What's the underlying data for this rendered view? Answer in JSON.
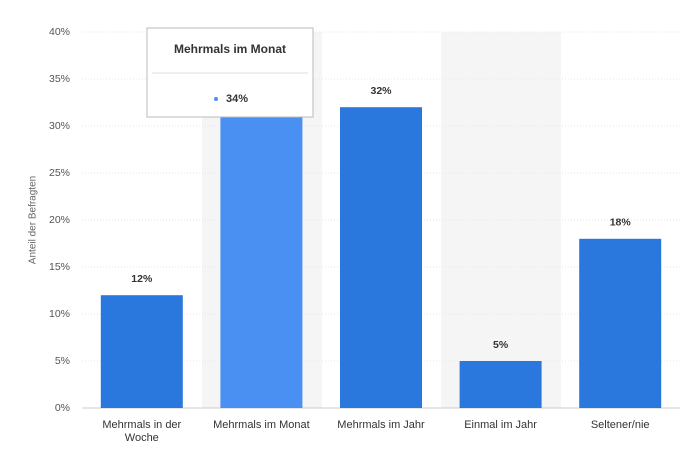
{
  "chart_data": {
    "type": "bar",
    "y_axis_label": "Anteil der Befragten",
    "categories": [
      "Mehrmals in der Woche",
      "Mehrmals im Monat",
      "Mehrmals im Jahr",
      "Einmal im Jahr",
      "Seltener/nie"
    ],
    "values": [
      12,
      34,
      32,
      5,
      18
    ],
    "value_labels": [
      "12%",
      "34%",
      "32%",
      "5%",
      "18%"
    ],
    "colors": [
      "#2a78de",
      "#4a90f2",
      "#2a78de",
      "#2a78de",
      "#2a78de"
    ],
    "ylim": [
      0,
      40
    ],
    "yticks": [
      {
        "value": 0,
        "label": "0%"
      },
      {
        "value": 5,
        "label": "5%"
      },
      {
        "value": 10,
        "label": "10%"
      },
      {
        "value": 15,
        "label": "15%"
      },
      {
        "value": 20,
        "label": "20%"
      },
      {
        "value": 25,
        "label": "25%"
      },
      {
        "value": 30,
        "label": "30%"
      },
      {
        "value": 35,
        "label": "35%"
      },
      {
        "value": 40,
        "label": "40%"
      }
    ],
    "grid": true
  }
}
